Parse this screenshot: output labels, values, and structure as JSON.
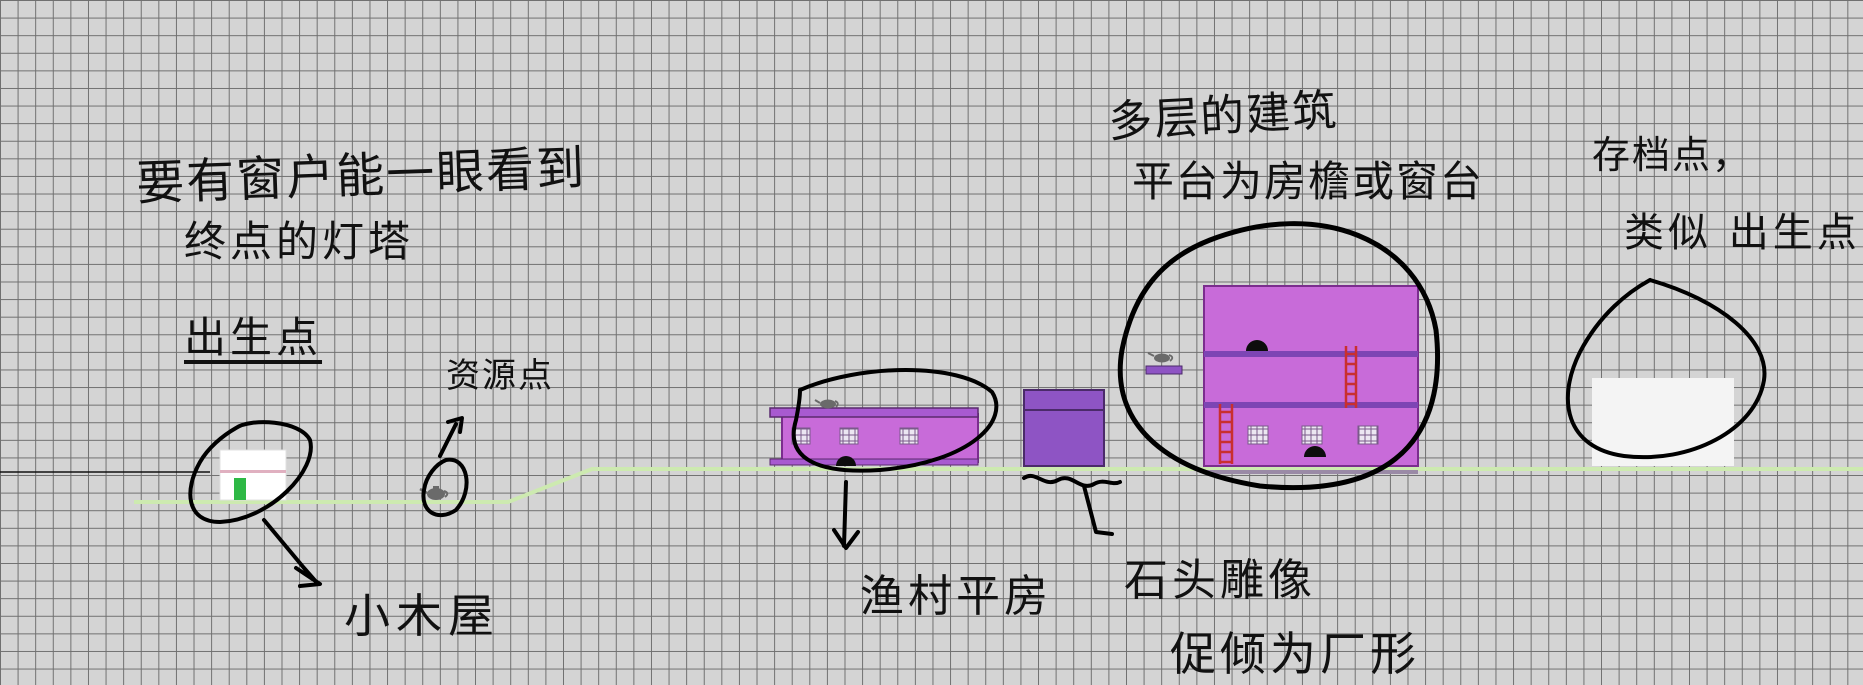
{
  "annotations": {
    "goal_line1": "要有窗户能一眼看到",
    "goal_line2": "终点的灯塔",
    "spawn_point": "出生点",
    "resource_point": "资源点",
    "cabin": "小木屋",
    "fishing_house": "渔村平房",
    "multi_building_line1": "多层的建筑",
    "multi_building_line2": "平台为房檐或窗台",
    "stone_statue_line1": "石头雕像",
    "stone_statue_line2": "促倾为厂形",
    "save_point_line1": "存档点，",
    "save_point_line2": "类似 出生点"
  },
  "icons": {
    "teapot": "teapot-icon",
    "ladder": "ladder-icon",
    "door": "door-icon",
    "window": "window-icon"
  },
  "colors": {
    "grid_bg": "#d4d4d4",
    "grid_line": "#6f6f6f",
    "ground_line": "#cdeab0",
    "building_fill": "#c86bd9",
    "building_edge": "#7b2d8e",
    "crate_fill": "#8e54c4",
    "ladder": "#c92f2f",
    "cabin_wall": "#ffffff",
    "cabin_door": "#2eb845",
    "ink": "#000000"
  }
}
